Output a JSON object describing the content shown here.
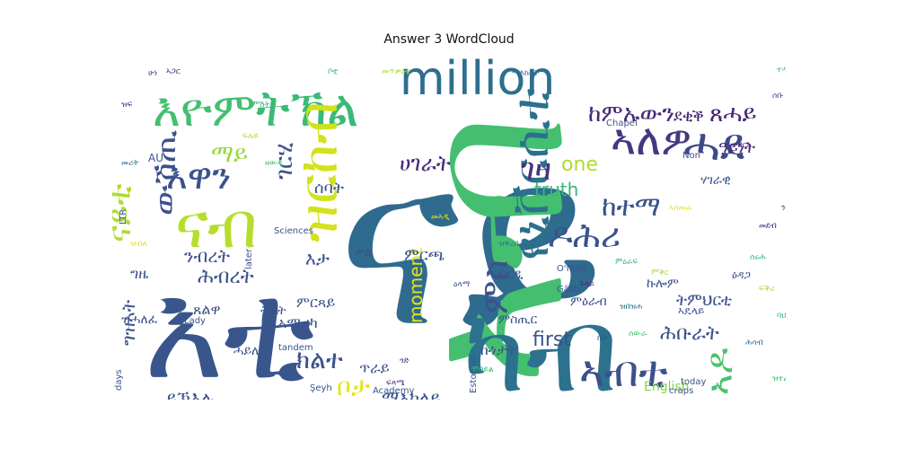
{
  "chart_data": {
    "type": "wordcloud",
    "title": "Answer 3 WordCloud",
    "words": [
      {
        "text": "ናይ",
        "color": "#2f6b8e"
      },
      {
        "text": "እቲ",
        "color": "#39568c"
      },
      {
        "text": "ኣብ",
        "color": "#44bf70"
      },
      {
        "text": "ካብ",
        "color": "#2c718e"
      },
      {
        "text": "ናብ",
        "color": "#b5de2b"
      },
      {
        "text": "million",
        "color": "#2e6e8e"
      },
      {
        "text": "ትኽል",
        "color": "#3aba76"
      },
      {
        "text": "እዮም",
        "color": "#44bf70"
      },
      {
        "text": "ኣለዎ",
        "color": "#453882"
      },
      {
        "text": "ሓደ",
        "color": "#3f4889"
      },
      {
        "text": "ኣብቲ",
        "color": "#3b528b"
      },
      {
        "text": "ውሽጢ",
        "color": "#3b528b"
      },
      {
        "text": "ዝርከብ",
        "color": "#d2e21b"
      },
      {
        "text": "ዩኒቨርሲቲ",
        "color": "#2d708e"
      },
      {
        "text": "ወረዳ",
        "color": "#472e7c"
      },
      {
        "text": "ናይቲ",
        "color": "#addc30"
      },
      {
        "text": "እዋን",
        "color": "#3b528b"
      },
      {
        "text": "ኣዶ",
        "color": "#4ac16d"
      },
      {
        "text": "ከተማ",
        "color": "#3b528b"
      },
      {
        "text": "ክልተ",
        "color": "#3b528b"
      },
      {
        "text": "ዶሕሪ",
        "color": "#3b528b"
      },
      {
        "text": "ገዛ",
        "color": "#46337f"
      },
      {
        "text": "ምስ",
        "color": "#3b528b"
      },
      {
        "text": "ገርሂ",
        "color": "#3b528b"
      },
      {
        "text": "ሀገራት",
        "color": "#472a7a"
      },
      {
        "text": "one",
        "color": "#addc30"
      },
      {
        "text": "truth",
        "color": "#35b779"
      },
      {
        "text": "moment",
        "color": "#e5e419"
      },
      {
        "text": "first",
        "color": "#3b528b"
      },
      {
        "text": "English",
        "color": "#86d549"
      },
      {
        "text": "ሕብረት",
        "color": "#3b528b"
      },
      {
        "text": "ከምኡውን",
        "color": "#472a7a"
      },
      {
        "text": "ደቂቕ",
        "color": "#482475"
      },
      {
        "text": "ጸሓይ",
        "color": "#482475"
      },
      {
        "text": "ዓይነት",
        "color": "#472a7a"
      },
      {
        "text": "ማይ",
        "color": "#98d83e"
      },
      {
        "text": "ሰባት",
        "color": "#3b528b"
      },
      {
        "text": "እታ",
        "color": "#3b528b"
      },
      {
        "text": "ትምህርቲ",
        "color": "#3b528b"
      },
      {
        "text": "ሕቡራት",
        "color": "#3b528b"
      },
      {
        "text": "ኩነታት",
        "color": "#3b528b"
      },
      {
        "text": "ምርጫ",
        "color": "#3b528b"
      },
      {
        "text": "ንብረት",
        "color": "#3b528b"
      },
      {
        "text": "ግዜ",
        "color": "#3b528b"
      },
      {
        "text": "ግዝኣት",
        "color": "#3b528b"
      },
      {
        "text": "ይኽእሉ",
        "color": "#3b528b"
      },
      {
        "text": "ማእከላይ",
        "color": "#3b528b"
      },
      {
        "text": "ኣቶም",
        "color": "#3b528b"
      },
      {
        "text": "ቦታ",
        "color": "#e5e419"
      },
      {
        "text": "ምርጻይ",
        "color": "#3b528b"
      },
      {
        "text": "ኣሜሪካ",
        "color": "#3b528b"
      },
      {
        "text": "ጥራይ",
        "color": "#3b528b"
      },
      {
        "text": "ጸልዋ",
        "color": "#3b528b"
      },
      {
        "text": "ትኤት",
        "color": "#3b528b"
      },
      {
        "text": "ዝሓለፈ",
        "color": "#3b528b"
      },
      {
        "text": "ሃገራዊ",
        "color": "#3b528b"
      },
      {
        "text": "ምስጢር",
        "color": "#3b528b"
      },
      {
        "text": "ኩሎም",
        "color": "#3b528b"
      },
      {
        "text": "ምዕራብ",
        "color": "#3b528b"
      },
      {
        "text": "ኣዴላይ",
        "color": "#3b528b"
      },
      {
        "text": "ሓይሊ",
        "color": "#3b528b"
      },
      {
        "text": "ቃል",
        "color": "#3b528b"
      },
      {
        "text": "ፍርዲ",
        "color": "#3b528b"
      },
      {
        "text": "ዕዳጋ",
        "color": "#3b528b"
      },
      {
        "text": "O'Neill",
        "color": "#3b528b"
      },
      {
        "text": "Lady",
        "color": "#3b528b"
      },
      {
        "text": "Chapel",
        "color": "#3b528b"
      },
      {
        "text": "Non",
        "color": "#3b528b"
      },
      {
        "text": "LTR",
        "color": "#3b528b"
      },
      {
        "text": "Sciences",
        "color": "#3b528b"
      },
      {
        "text": "Şeyh",
        "color": "#3b528b"
      },
      {
        "text": "later",
        "color": "#3b528b"
      },
      {
        "text": "tandem",
        "color": "#3b528b"
      },
      {
        "text": "Gälib",
        "color": "#3b528b"
      },
      {
        "text": "Several",
        "color": "#3b528b"
      },
      {
        "text": "Estonian",
        "color": "#3b528b"
      },
      {
        "text": "Academy",
        "color": "#3b528b"
      },
      {
        "text": "craps",
        "color": "#3b528b"
      },
      {
        "text": "days",
        "color": "#3b528b"
      },
      {
        "text": "today",
        "color": "#3b528b"
      },
      {
        "text": "AU",
        "color": "#3b528b"
      }
    ]
  }
}
